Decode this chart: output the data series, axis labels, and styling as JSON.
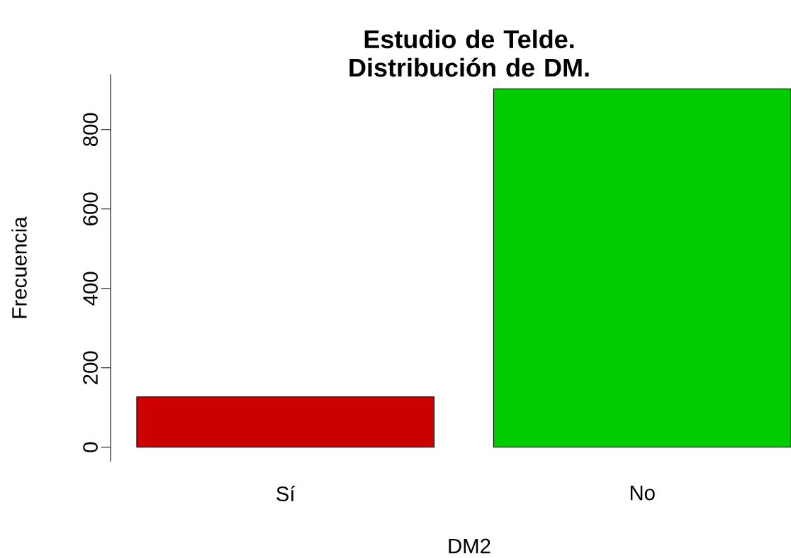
{
  "chart_data": {
    "type": "bar",
    "title": "Estudio de Telde. Distribución de DM.",
    "xlabel": "DM2",
    "ylabel": "Frecuencia",
    "categories": [
      "Sí",
      "No"
    ],
    "values": [
      127,
      903
    ],
    "colors": [
      "#cd0000",
      "#00cd00"
    ],
    "ylim": [
      -36,
      939
    ],
    "yticks": [
      0,
      200,
      400,
      600,
      800
    ],
    "grid": false
  }
}
